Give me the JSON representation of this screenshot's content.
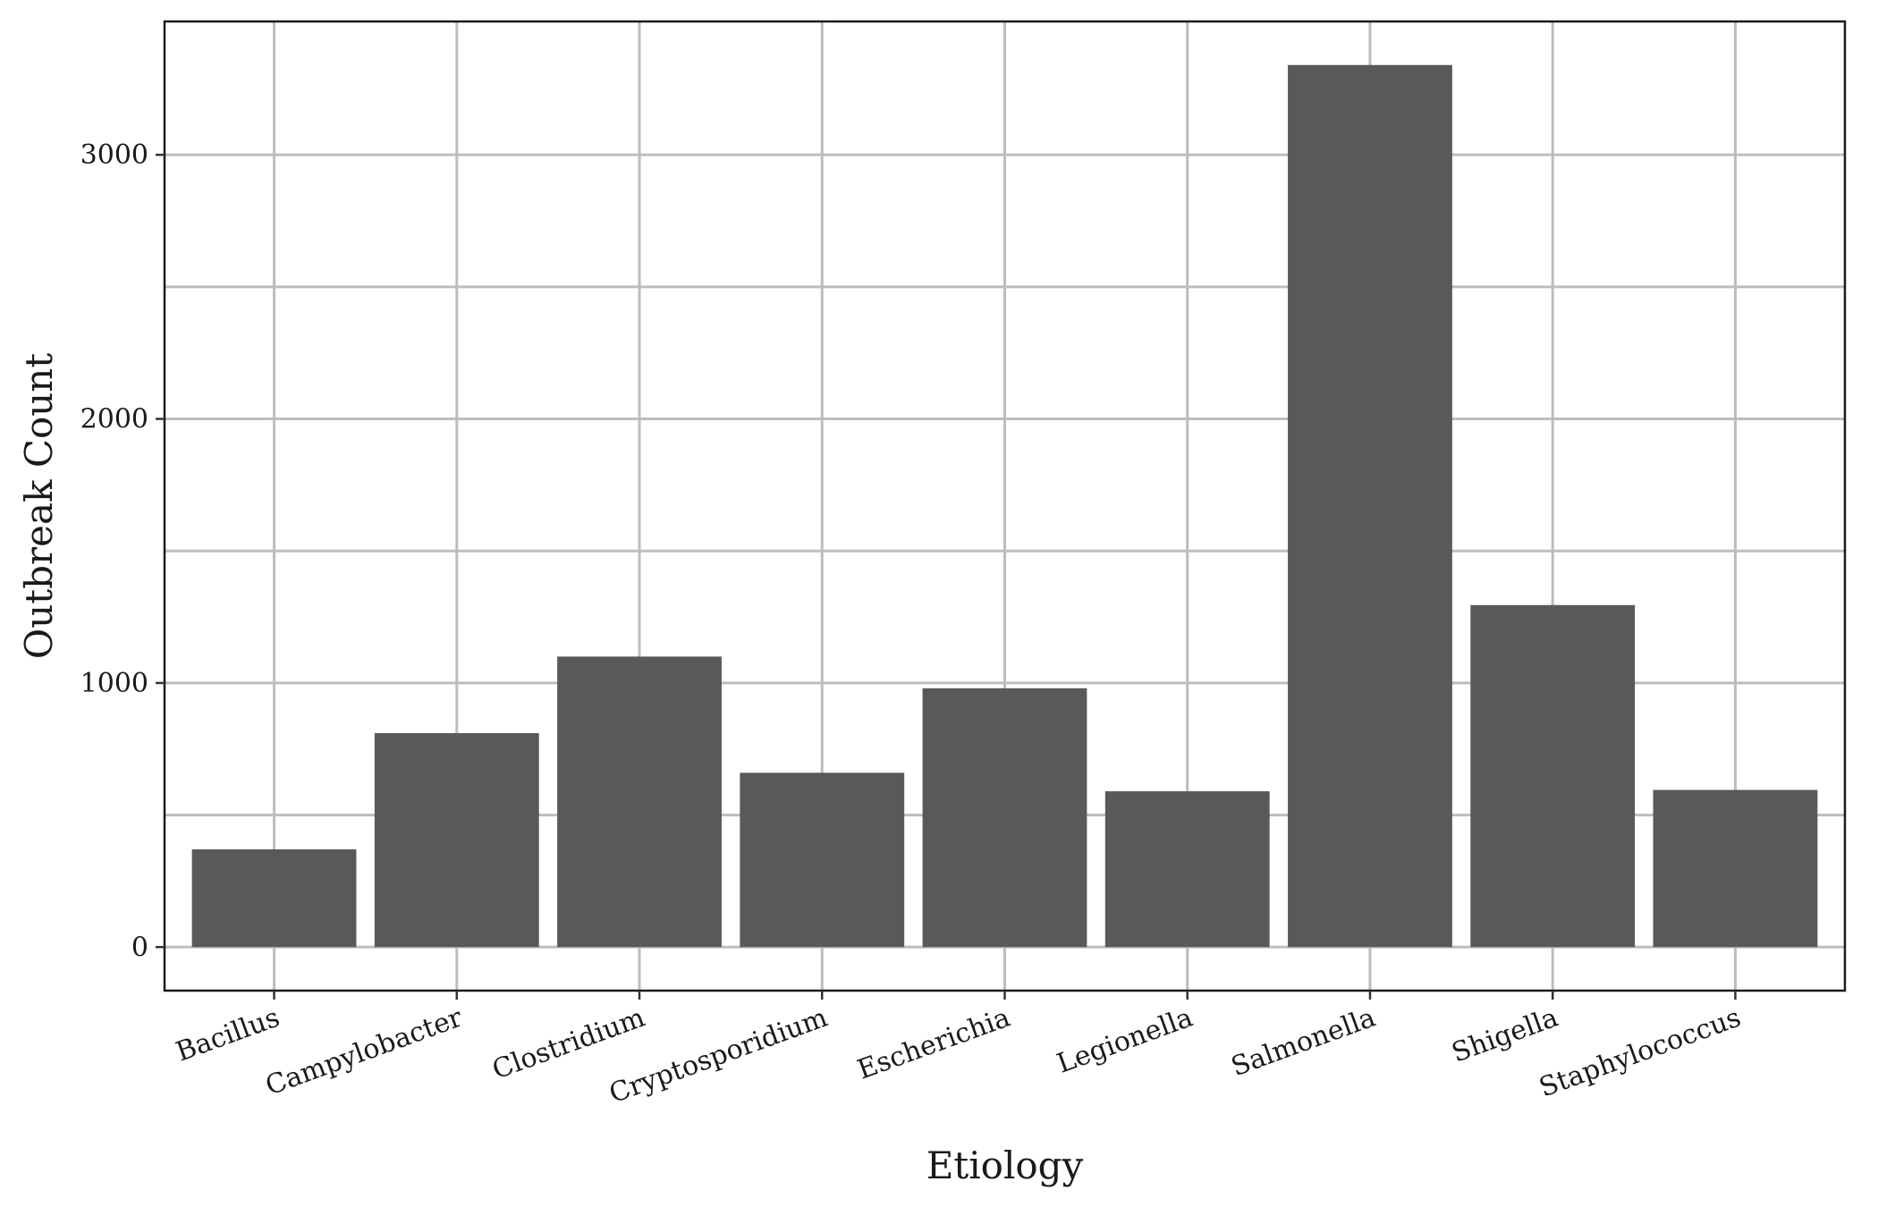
{
  "chart_data": {
    "type": "bar",
    "title": "",
    "xlabel": "Etiology",
    "ylabel": "Outbreak Count",
    "categories": [
      "Bacillus",
      "Campylobacter",
      "Clostridium",
      "Cryptosporidium",
      "Escherichia",
      "Legionella",
      "Salmonella",
      "Shigella",
      "Staphylococcus"
    ],
    "values": [
      370,
      810,
      1100,
      660,
      980,
      590,
      3340,
      1295,
      595
    ],
    "ylim": [
      -165,
      3505
    ],
    "yticks": [
      0,
      1000,
      2000,
      3000
    ],
    "minor_yticks": [
      500,
      1500,
      2500
    ],
    "grid": true,
    "bar_color": "#595959",
    "grid_color": "#bdbdbd"
  }
}
